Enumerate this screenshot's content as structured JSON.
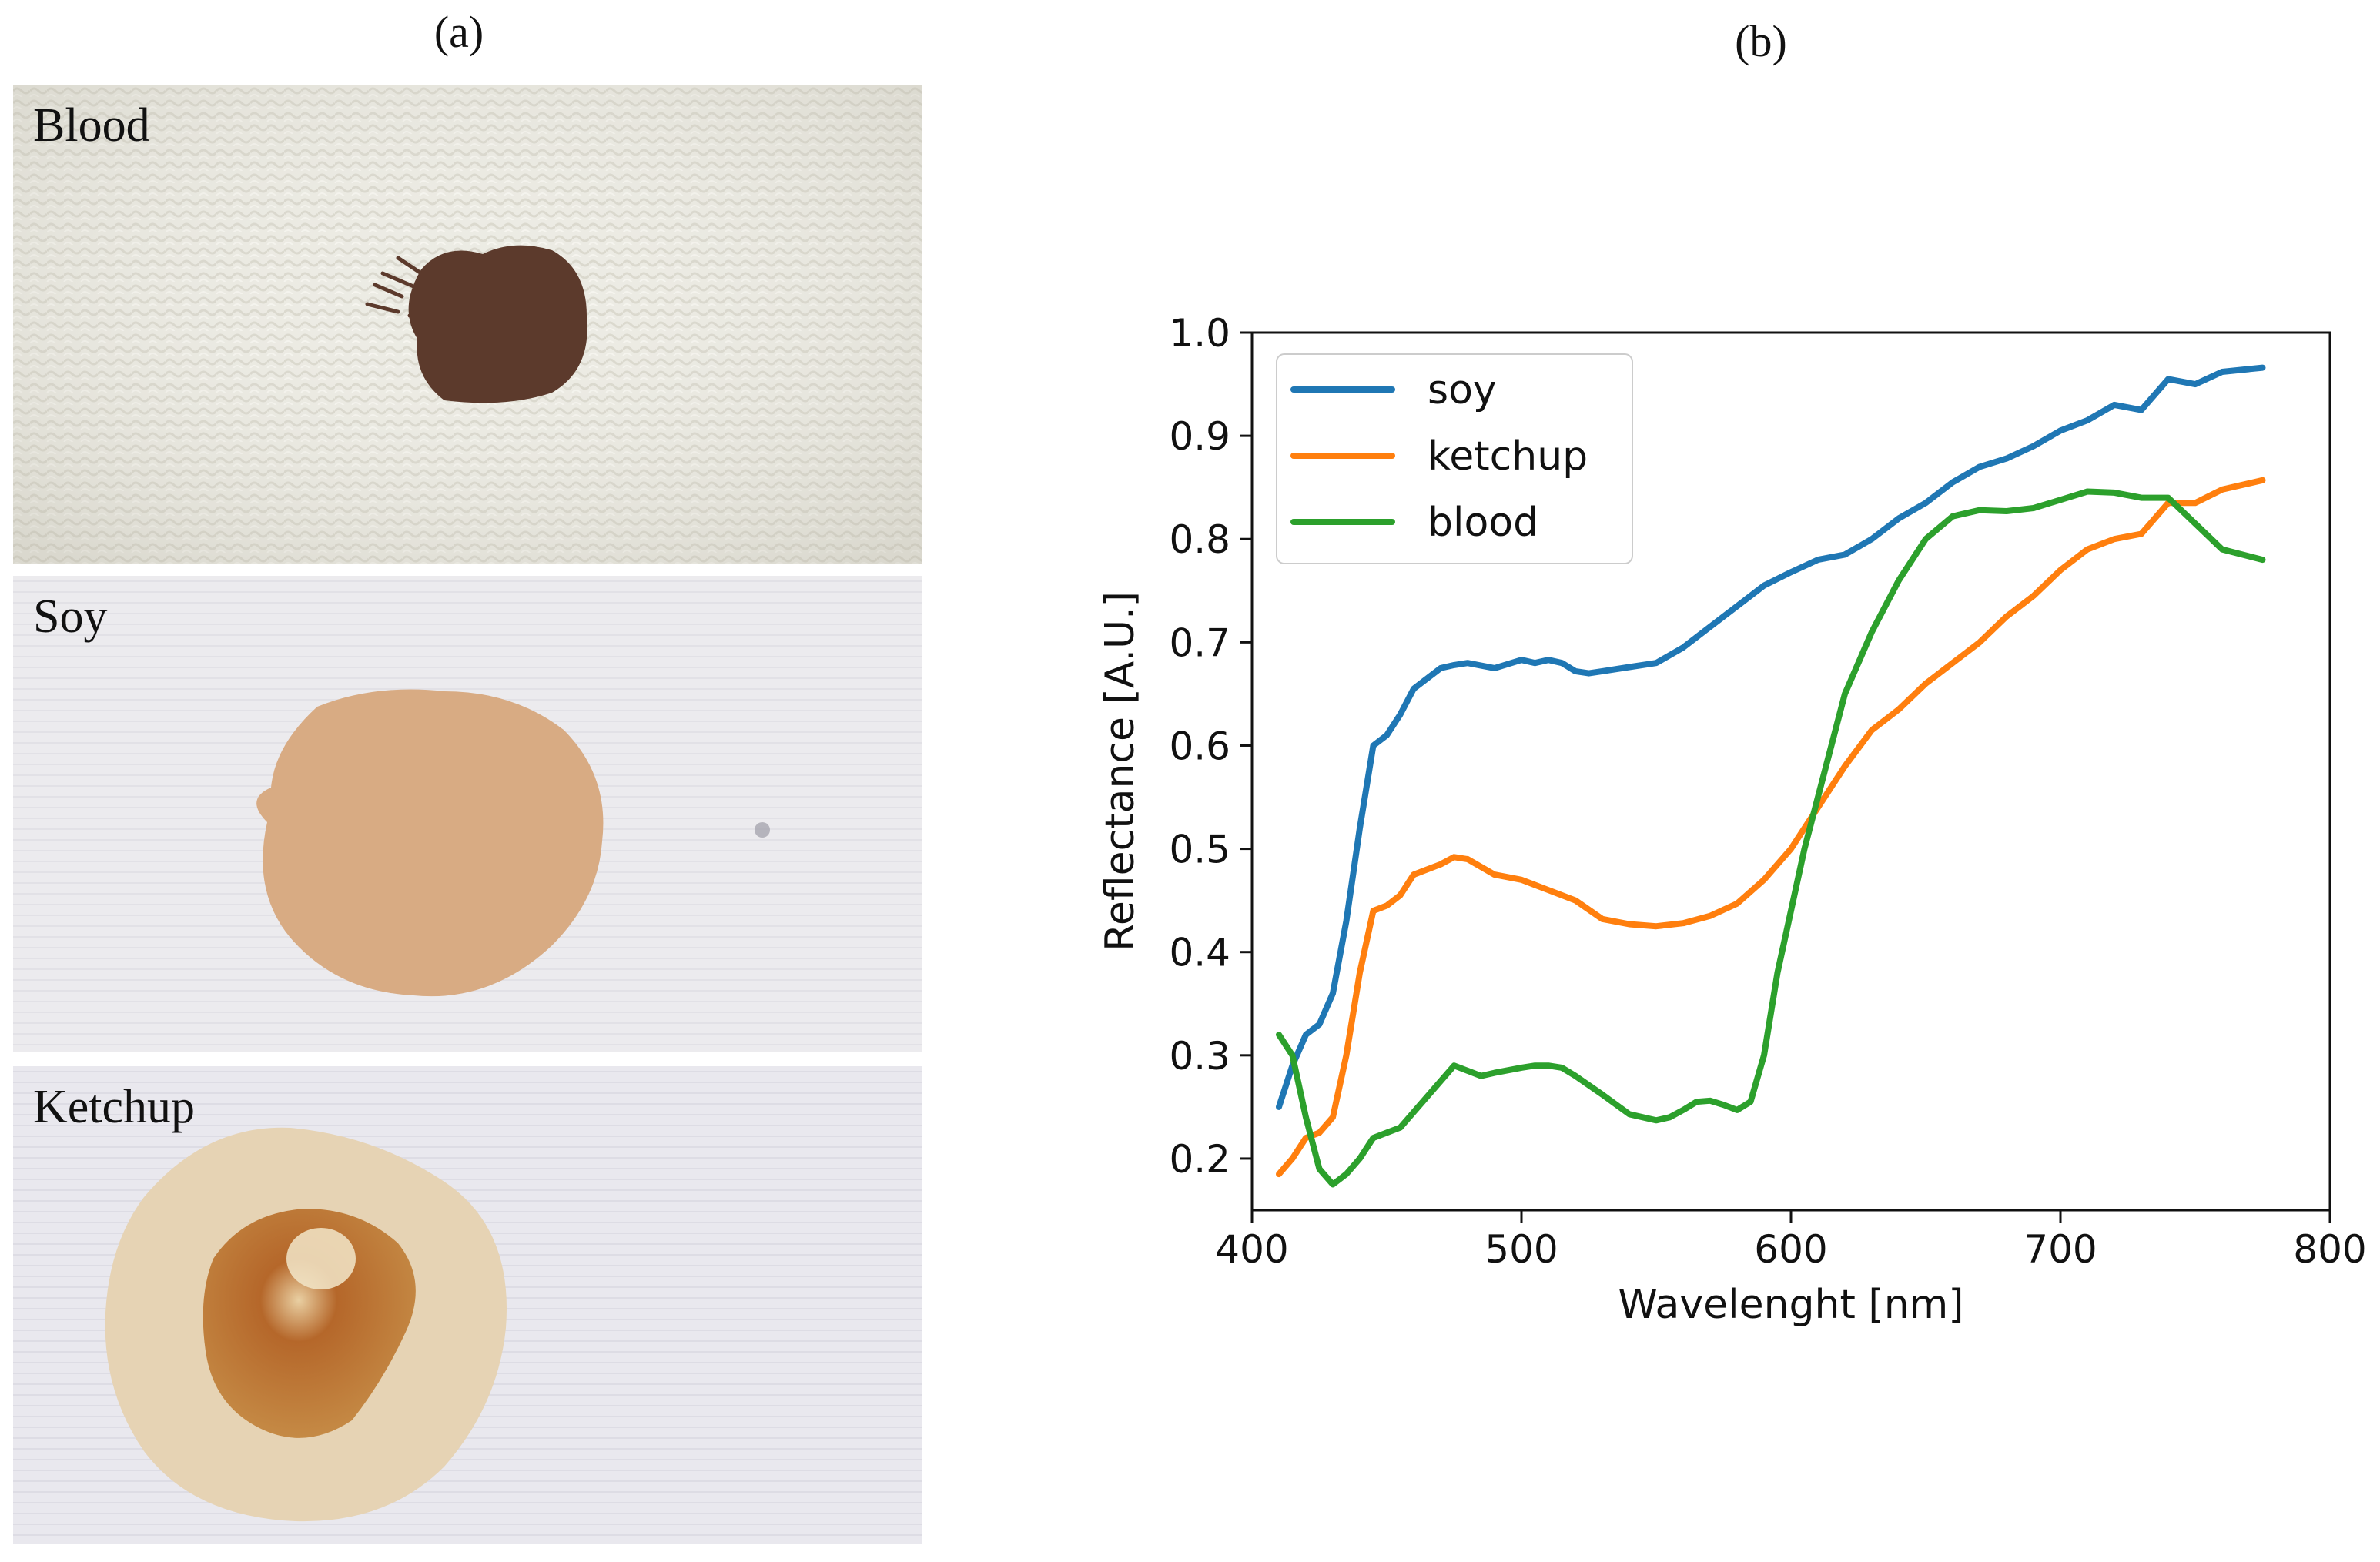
{
  "panels": {
    "a_label": "(a)",
    "b_label": "(b)"
  },
  "photos": [
    {
      "label": "Blood",
      "stain_color": "#5c3a2c",
      "fabric_color": "#ecebe3"
    },
    {
      "label": "Soy",
      "stain_color": "#d8ab83",
      "fabric_color": "#ecebee"
    },
    {
      "label": "Ketchup",
      "stain_color": "#b9732e",
      "fabric_color": "#e9e8ee"
    }
  ],
  "chart_data": {
    "type": "line",
    "xlabel": "Wavelenght [nm]",
    "ylabel": "Reflectance [A.U.]",
    "xlim": [
      400,
      800
    ],
    "ylim": [
      0.15,
      1.0
    ],
    "xticks": [
      400,
      500,
      600,
      700,
      800
    ],
    "yticks": [
      0.2,
      0.3,
      0.4,
      0.5,
      0.6,
      0.7,
      0.8,
      0.9,
      1.0
    ],
    "grid": false,
    "legend_position": "top-left",
    "series": [
      {
        "name": "soy",
        "color": "#1f77b4",
        "x": [
          410,
          415,
          420,
          425,
          430,
          435,
          440,
          445,
          450,
          455,
          460,
          465,
          470,
          475,
          480,
          490,
          500,
          505,
          510,
          515,
          520,
          525,
          530,
          540,
          550,
          560,
          570,
          580,
          590,
          600,
          610,
          620,
          630,
          640,
          650,
          660,
          670,
          680,
          690,
          700,
          710,
          720,
          730,
          740,
          750,
          760,
          775
        ],
        "y": [
          0.25,
          0.29,
          0.32,
          0.33,
          0.36,
          0.43,
          0.52,
          0.6,
          0.61,
          0.63,
          0.655,
          0.665,
          0.675,
          0.678,
          0.68,
          0.675,
          0.683,
          0.68,
          0.683,
          0.68,
          0.672,
          0.67,
          0.672,
          0.676,
          0.68,
          0.695,
          0.715,
          0.735,
          0.755,
          0.768,
          0.78,
          0.785,
          0.8,
          0.82,
          0.835,
          0.855,
          0.87,
          0.878,
          0.89,
          0.905,
          0.915,
          0.93,
          0.925,
          0.955,
          0.95,
          0.962,
          0.966
        ]
      },
      {
        "name": "ketchup",
        "color": "#ff7f0e",
        "x": [
          410,
          415,
          420,
          425,
          430,
          435,
          440,
          445,
          450,
          455,
          460,
          465,
          470,
          475,
          480,
          490,
          500,
          505,
          510,
          520,
          530,
          540,
          550,
          560,
          570,
          580,
          590,
          600,
          610,
          620,
          630,
          640,
          650,
          660,
          670,
          680,
          690,
          700,
          710,
          720,
          730,
          740,
          750,
          760,
          775
        ],
        "y": [
          0.185,
          0.2,
          0.22,
          0.225,
          0.24,
          0.3,
          0.38,
          0.44,
          0.445,
          0.455,
          0.475,
          0.48,
          0.485,
          0.492,
          0.49,
          0.475,
          0.47,
          0.465,
          0.46,
          0.45,
          0.432,
          0.427,
          0.425,
          0.428,
          0.435,
          0.447,
          0.47,
          0.5,
          0.54,
          0.58,
          0.615,
          0.635,
          0.66,
          0.68,
          0.7,
          0.725,
          0.745,
          0.77,
          0.79,
          0.8,
          0.805,
          0.835,
          0.835,
          0.848,
          0.857
        ]
      },
      {
        "name": "blood",
        "color": "#2ca02c",
        "x": [
          410,
          415,
          420,
          425,
          430,
          435,
          440,
          445,
          450,
          455,
          460,
          465,
          470,
          475,
          480,
          485,
          490,
          500,
          505,
          510,
          515,
          520,
          530,
          540,
          550,
          555,
          560,
          565,
          570,
          575,
          580,
          585,
          590,
          595,
          600,
          605,
          610,
          620,
          630,
          640,
          650,
          660,
          670,
          680,
          690,
          700,
          710,
          720,
          730,
          740,
          750,
          760,
          775
        ],
        "y": [
          0.32,
          0.3,
          0.24,
          0.19,
          0.175,
          0.185,
          0.2,
          0.22,
          0.225,
          0.23,
          0.245,
          0.26,
          0.275,
          0.29,
          0.285,
          0.28,
          0.283,
          0.288,
          0.29,
          0.29,
          0.288,
          0.28,
          0.262,
          0.243,
          0.237,
          0.24,
          0.247,
          0.255,
          0.256,
          0.252,
          0.247,
          0.255,
          0.3,
          0.38,
          0.44,
          0.5,
          0.55,
          0.65,
          0.71,
          0.76,
          0.8,
          0.822,
          0.828,
          0.827,
          0.83,
          0.838,
          0.846,
          0.845,
          0.84,
          0.84,
          0.815,
          0.79,
          0.78
        ]
      }
    ]
  }
}
